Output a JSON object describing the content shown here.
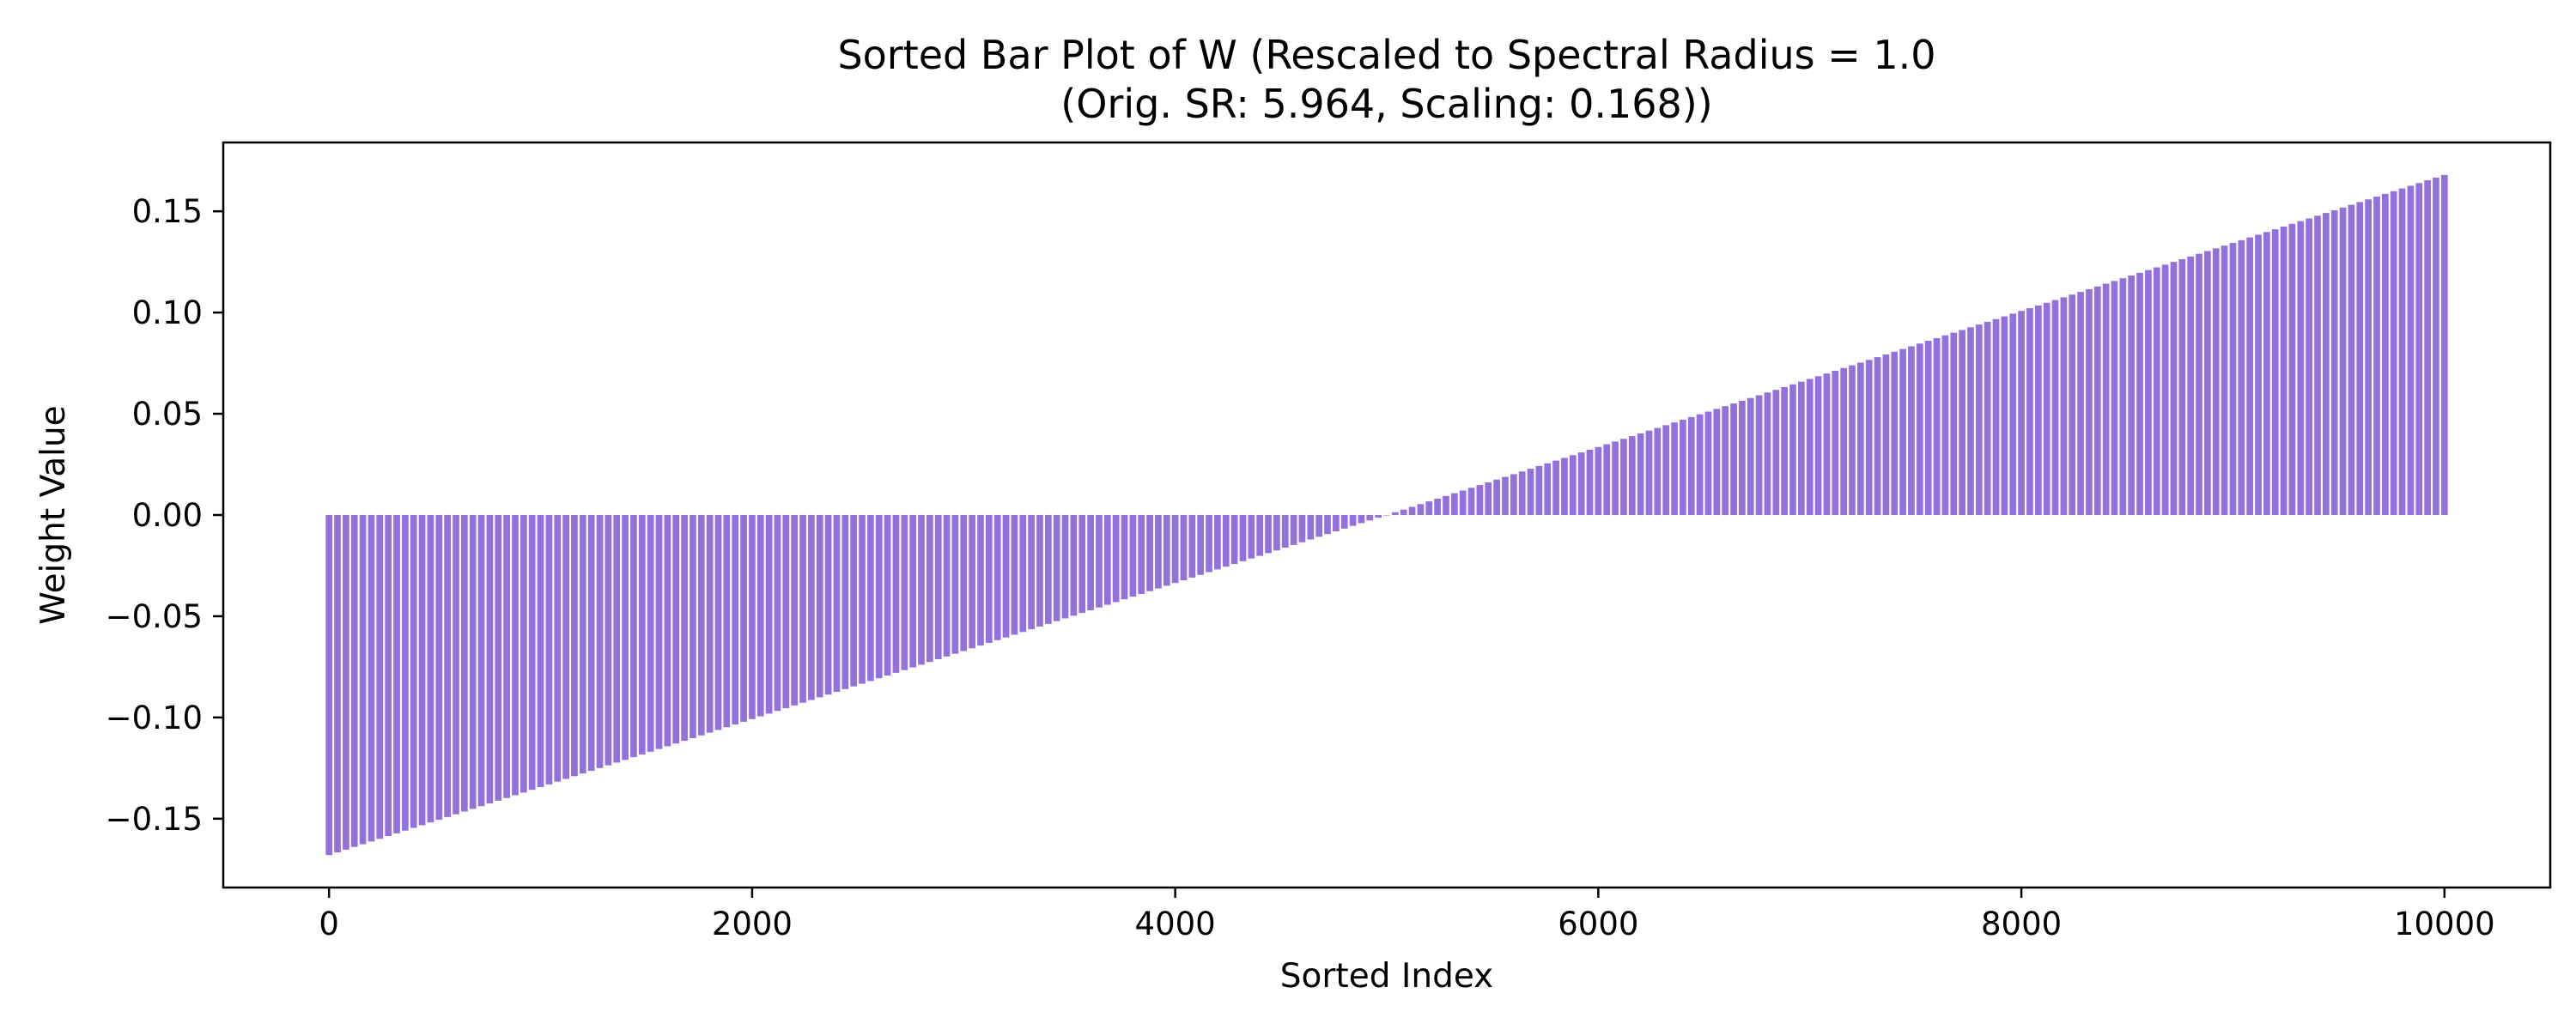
{
  "chart_data": {
    "type": "bar",
    "title_line1": "Sorted Bar Plot of W (Rescaled to Spectral Radius = 1.0",
    "title_line2": "(Orig. SR: 5.964, Scaling: 0.168))",
    "xlabel": "Sorted Index",
    "ylabel": "Weight Value",
    "xlim": [
      -500,
      10500
    ],
    "ylim": [
      -0.184,
      0.184
    ],
    "xticks": [
      {
        "value": 0,
        "label": "0"
      },
      {
        "value": 2000,
        "label": "2000"
      },
      {
        "value": 4000,
        "label": "4000"
      },
      {
        "value": 6000,
        "label": "6000"
      },
      {
        "value": 8000,
        "label": "8000"
      },
      {
        "value": 10000,
        "label": "10000"
      }
    ],
    "yticks": [
      {
        "value": 0.15,
        "label": "0.15"
      },
      {
        "value": 0.1,
        "label": "0.10"
      },
      {
        "value": 0.05,
        "label": "0.05"
      },
      {
        "value": 0.0,
        "label": "0.00"
      },
      {
        "value": -0.05,
        "label": "−0.05"
      },
      {
        "value": -0.1,
        "label": "−0.10"
      },
      {
        "value": -0.15,
        "label": "−0.15"
      }
    ],
    "series": [
      {
        "color": "#9370db",
        "description_of_values": "10000 sorted weights rising approximately linearly",
        "x_start": 0,
        "x_end": 10000,
        "y_min": -0.168,
        "y_max": 0.168
      }
    ],
    "grid": false,
    "legend": "none"
  }
}
